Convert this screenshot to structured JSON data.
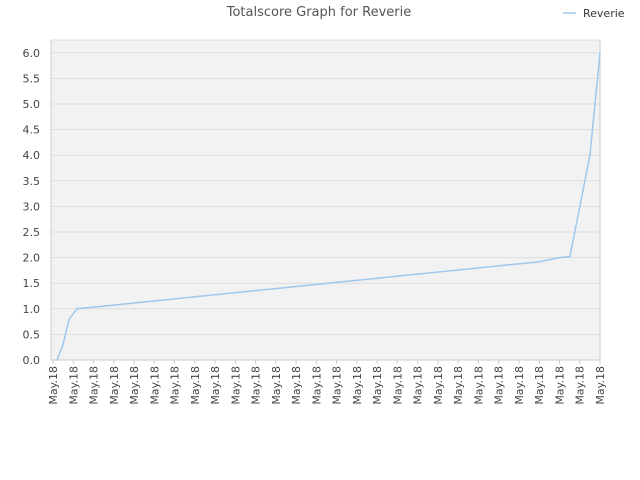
{
  "chart_data": {
    "type": "line",
    "title": "Totalscore Graph for Reverie",
    "xlabel": "",
    "ylabel": "",
    "ylim": [
      0,
      6.25
    ],
    "yticks": [
      0.0,
      0.5,
      1.0,
      1.5,
      2.0,
      2.5,
      3.0,
      3.5,
      4.0,
      4.5,
      5.0,
      5.5,
      6.0
    ],
    "ytick_labels": [
      "0.0",
      "0.5",
      "1.0",
      "1.5",
      "2.0",
      "2.5",
      "3.0",
      "3.5",
      "4.0",
      "4.5",
      "5.0",
      "5.5",
      "6.0"
    ],
    "xtick_labels": [
      "May.18",
      "May.18",
      "May.18",
      "May.18",
      "May.18",
      "May.18",
      "May.18",
      "May.18",
      "May.18",
      "May.18",
      "May.18",
      "May.18",
      "May.18",
      "May.18",
      "May.18",
      "May.18",
      "May.18",
      "May.18",
      "May.18",
      "May.18",
      "May.18",
      "May.18",
      "May.18",
      "May.18",
      "May.18",
      "May.18",
      "May.18",
      "May.18"
    ],
    "grid": true,
    "legend": "top-right",
    "colors": {
      "line": "#9ec8ee",
      "band": "#f2f2f2",
      "grid": "#dddddd",
      "axis": "#cccccc"
    },
    "series": [
      {
        "name": "Reverie",
        "x": [
          0.0,
          0.3,
          0.6,
          1.0,
          1.5,
          2.0,
          3.0,
          4.0,
          5.0,
          6.0,
          7.0,
          8.0,
          9.0,
          10.0,
          11.0,
          12.0,
          13.0,
          14.0,
          15.0,
          16.0,
          17.0,
          18.0,
          19.0,
          20.0,
          21.0,
          22.0,
          23.0,
          24.0,
          24.5,
          25.0,
          25.5,
          26.0,
          26.5,
          27.0
        ],
        "values": [
          0.0,
          0.3,
          0.8,
          1.0,
          1.02,
          1.04,
          1.08,
          1.12,
          1.16,
          1.2,
          1.24,
          1.28,
          1.32,
          1.36,
          1.4,
          1.44,
          1.48,
          1.52,
          1.56,
          1.6,
          1.64,
          1.68,
          1.72,
          1.76,
          1.8,
          1.84,
          1.88,
          1.92,
          1.96,
          2.0,
          2.02,
          3.0,
          4.0,
          6.0
        ]
      }
    ]
  }
}
